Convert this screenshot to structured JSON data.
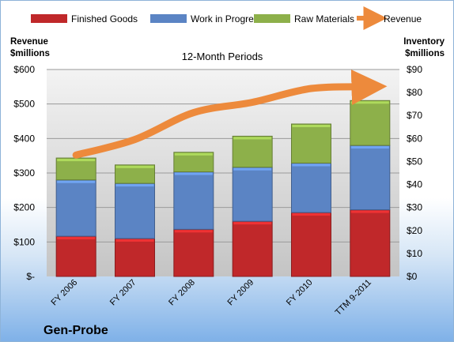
{
  "company": "Gen-Probe",
  "chart_data": {
    "type": "bar",
    "subtitle": "12-Month Periods",
    "categories": [
      "FY 2006",
      "FY 2007",
      "FY 2008",
      "FY 2009",
      "FY 2010",
      "TTM 9-2011"
    ],
    "left_axis": {
      "label_line1": "Revenue",
      "label_line2": "$millions",
      "ticks": [
        "$-",
        "$100",
        "$200",
        "$300",
        "$400",
        "$500",
        "$600"
      ],
      "range": [
        0,
        600
      ]
    },
    "right_axis": {
      "label_line1": "Inventory",
      "label_line2": "$millions",
      "ticks": [
        "$0",
        "$10",
        "$20",
        "$30",
        "$40",
        "$50",
        "$60",
        "$70",
        "$80",
        "$90"
      ],
      "range": [
        0,
        90
      ]
    },
    "series": [
      {
        "name": "Finished Goods",
        "type": "stacked-bar",
        "axis": "right",
        "color": "#c0282a",
        "values": [
          17.5,
          16.5,
          20.5,
          24,
          27.8,
          29
        ]
      },
      {
        "name": "Work in Progress",
        "type": "stacked-bar",
        "axis": "right",
        "color": "#5b84c4",
        "values": [
          24.5,
          24,
          25,
          23.5,
          21.5,
          28
        ]
      },
      {
        "name": "Raw Materials",
        "type": "stacked-bar",
        "axis": "right",
        "color": "#8db04a",
        "values": [
          9.5,
          8,
          8.5,
          13.5,
          17,
          19.5
        ]
      },
      {
        "name": "Revenue",
        "type": "line",
        "axis": "left",
        "color": "#ed8a3c",
        "values": [
          352,
          397,
          475,
          505,
          545,
          550
        ]
      }
    ],
    "grid": true,
    "legend": "top"
  }
}
